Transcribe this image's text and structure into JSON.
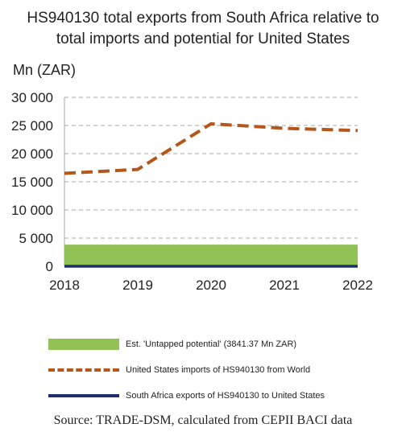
{
  "title_line1": "HS940130 total exports from South Africa relative to",
  "title_line2": "total imports and potential for United States",
  "y_unit_label": "Mn (ZAR)",
  "source": "Source: TRADE-DSM, calculated from CEPII BACI data",
  "chart_data": {
    "type": "line",
    "title": "HS940130 total exports from South Africa relative to total imports and potential for United States",
    "ylabel": "Mn (ZAR)",
    "x": [
      "2018",
      "2019",
      "2020",
      "2021",
      "2022"
    ],
    "ylim": [
      0,
      30000
    ],
    "yticks": [
      0,
      5000,
      10000,
      15000,
      20000,
      25000,
      30000
    ],
    "ytick_labels": [
      "0",
      "5 000",
      "10 000",
      "15 000",
      "20 000",
      "25 000",
      "30 000"
    ],
    "grid": true,
    "series": [
      {
        "name": "Est. 'Untapped potential' (3841.37 Mn ZAR)",
        "kind": "area",
        "color": "#92c156",
        "values": [
          3841.37,
          3841.37,
          3841.37,
          3841.37,
          3841.37
        ]
      },
      {
        "name": "United States imports of HS940130 from World",
        "kind": "dashed-line",
        "color": "#b5561a",
        "values": [
          16500,
          17200,
          25300,
          24500,
          24100
        ]
      },
      {
        "name": "South Africa exports of HS940130 to United States",
        "kind": "line",
        "color": "#1f2f6e",
        "values": [
          0,
          0,
          0,
          0,
          0
        ]
      }
    ],
    "legend_position": "bottom"
  }
}
